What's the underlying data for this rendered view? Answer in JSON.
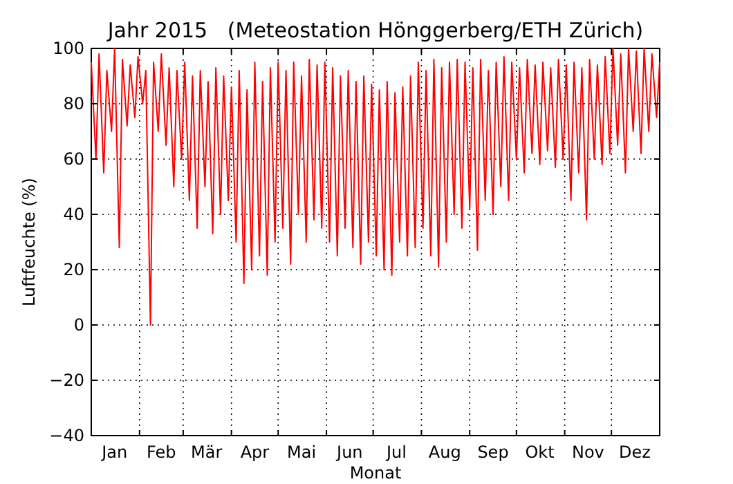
{
  "chart_data": {
    "type": "line",
    "title": "Jahr 2015   (Meteostation Hönggerberg/ETH Zürich)",
    "xlabel": "Monat",
    "ylabel": "Luftfeuchte (%)",
    "x": [
      "2015-01-01",
      "2015-01-04",
      "2015-01-06",
      "2015-01-09",
      "2015-01-11",
      "2015-01-14",
      "2015-01-16",
      "2015-01-19",
      "2015-01-21",
      "2015-01-24",
      "2015-01-26",
      "2015-01-29",
      "2015-01-31",
      "2015-02-03",
      "2015-02-05",
      "2015-02-08",
      "2015-02-10",
      "2015-02-13",
      "2015-02-15",
      "2015-02-18",
      "2015-02-20",
      "2015-02-23",
      "2015-02-25",
      "2015-02-28",
      "2015-03-02",
      "2015-03-05",
      "2015-03-07",
      "2015-03-10",
      "2015-03-12",
      "2015-03-15",
      "2015-03-17",
      "2015-03-20",
      "2015-03-22",
      "2015-03-25",
      "2015-03-27",
      "2015-03-30",
      "2015-04-01",
      "2015-04-04",
      "2015-04-06",
      "2015-04-09",
      "2015-04-11",
      "2015-04-14",
      "2015-04-16",
      "2015-04-19",
      "2015-04-21",
      "2015-04-24",
      "2015-04-26",
      "2015-04-29",
      "2015-05-01",
      "2015-05-04",
      "2015-05-06",
      "2015-05-09",
      "2015-05-11",
      "2015-05-14",
      "2015-05-16",
      "2015-05-19",
      "2015-05-21",
      "2015-05-24",
      "2015-05-26",
      "2015-05-29",
      "2015-05-31",
      "2015-06-03",
      "2015-06-05",
      "2015-06-08",
      "2015-06-10",
      "2015-06-13",
      "2015-06-15",
      "2015-06-18",
      "2015-06-20",
      "2015-06-23",
      "2015-06-25",
      "2015-06-28",
      "2015-06-30",
      "2015-07-03",
      "2015-07-05",
      "2015-07-08",
      "2015-07-10",
      "2015-07-13",
      "2015-07-15",
      "2015-07-18",
      "2015-07-20",
      "2015-07-23",
      "2015-07-25",
      "2015-07-28",
      "2015-07-30",
      "2015-08-02",
      "2015-08-04",
      "2015-08-07",
      "2015-08-09",
      "2015-08-12",
      "2015-08-14",
      "2015-08-17",
      "2015-08-19",
      "2015-08-22",
      "2015-08-24",
      "2015-08-27",
      "2015-08-29",
      "2015-09-01",
      "2015-09-03",
      "2015-09-06",
      "2015-09-08",
      "2015-09-11",
      "2015-09-13",
      "2015-09-16",
      "2015-09-18",
      "2015-09-21",
      "2015-09-23",
      "2015-09-26",
      "2015-09-28",
      "2015-10-01",
      "2015-10-03",
      "2015-10-06",
      "2015-10-08",
      "2015-10-11",
      "2015-10-13",
      "2015-10-16",
      "2015-10-18",
      "2015-10-21",
      "2015-10-23",
      "2015-10-26",
      "2015-10-28",
      "2015-10-31",
      "2015-11-02",
      "2015-11-05",
      "2015-11-07",
      "2015-11-10",
      "2015-11-12",
      "2015-11-15",
      "2015-11-17",
      "2015-11-20",
      "2015-11-22",
      "2015-11-25",
      "2015-11-27",
      "2015-11-30",
      "2015-12-02",
      "2015-12-05",
      "2015-12-07",
      "2015-12-10",
      "2015-12-12",
      "2015-12-15",
      "2015-12-17",
      "2015-12-20",
      "2015-12-22",
      "2015-12-25",
      "2015-12-27",
      "2015-12-30",
      "2016-01-01"
    ],
    "series": [
      {
        "color": "#ff0000",
        "values": [
          95,
          60,
          98,
          55,
          92,
          70,
          100,
          28,
          96,
          72,
          94,
          75,
          97,
          80,
          92,
          0,
          95,
          70,
          98,
          65,
          93,
          50,
          92,
          60,
          95,
          45,
          90,
          35,
          92,
          50,
          88,
          33,
          93,
          40,
          90,
          45,
          86,
          30,
          92,
          15,
          85,
          20,
          95,
          25,
          88,
          18,
          93,
          30,
          95,
          35,
          92,
          22,
          95,
          40,
          90,
          30,
          96,
          38,
          94,
          35,
          95,
          30,
          93,
          25,
          90,
          35,
          92,
          28,
          88,
          22,
          90,
          30,
          87,
          25,
          85,
          20,
          88,
          18,
          84,
          30,
          86,
          25,
          90,
          28,
          95,
          35,
          92,
          25,
          96,
          21,
          93,
          30,
          95,
          40,
          96,
          35,
          95,
          42,
          93,
          27,
          96,
          45,
          92,
          40,
          95,
          50,
          97,
          45,
          95,
          60,
          93,
          55,
          96,
          62,
          94,
          58,
          95,
          63,
          93,
          57,
          96,
          60,
          94,
          45,
          95,
          55,
          93,
          38,
          96,
          60,
          94,
          58,
          97,
          62,
          100,
          65,
          98,
          55,
          100,
          70,
          99,
          62,
          100,
          70,
          98,
          75,
          95
        ]
      }
    ],
    "xlim": [
      "2015-01-01",
      "2016-01-01"
    ],
    "xticks": [
      {
        "value": "2015-01-01",
        "label": null
      },
      {
        "value": "2015-02-01",
        "label": null
      },
      {
        "value": "2015-03-01",
        "label": null
      },
      {
        "value": "2015-04-01",
        "label": null
      },
      {
        "value": "2015-05-01",
        "label": null
      },
      {
        "value": "2015-06-01",
        "label": null
      },
      {
        "value": "2015-07-01",
        "label": null
      },
      {
        "value": "2015-08-01",
        "label": null
      },
      {
        "value": "2015-09-01",
        "label": null
      },
      {
        "value": "2015-10-01",
        "label": null
      },
      {
        "value": "2015-11-01",
        "label": null
      },
      {
        "value": "2015-12-01",
        "label": null
      },
      {
        "value": "2016-01-01",
        "label": null
      },
      {
        "value": "2015-01-16",
        "label": "Jan"
      },
      {
        "value": "2015-02-15",
        "label": "Feb"
      },
      {
        "value": "2015-03-16",
        "label": "Mär"
      },
      {
        "value": "2015-04-16",
        "label": "Apr"
      },
      {
        "value": "2015-05-16",
        "label": "Mai"
      },
      {
        "value": "2015-06-16",
        "label": "Jun"
      },
      {
        "value": "2015-07-16",
        "label": "Jul"
      },
      {
        "value": "2015-08-16",
        "label": "Aug"
      },
      {
        "value": "2015-09-16",
        "label": "Sep"
      },
      {
        "value": "2015-10-16",
        "label": "Okt"
      },
      {
        "value": "2015-11-16",
        "label": "Nov"
      },
      {
        "value": "2015-12-16",
        "label": "Dez"
      }
    ],
    "ylim": [
      -40,
      100
    ],
    "yticks": [
      {
        "value": -40,
        "label": "−40"
      },
      {
        "value": -20,
        "label": "−20"
      },
      0,
      20,
      40,
      60,
      80,
      100
    ],
    "grid": true,
    "marker": "none",
    "line_style": "solid"
  }
}
